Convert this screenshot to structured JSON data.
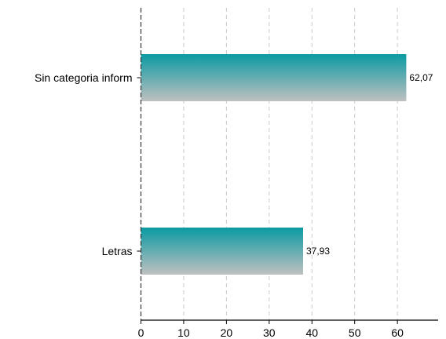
{
  "chart_data": {
    "type": "bar",
    "orientation": "horizontal",
    "categories": [
      "Sin categoria inform",
      "Letras"
    ],
    "values": [
      62.07,
      37.93
    ],
    "value_labels": [
      "62,07",
      "37,93"
    ],
    "title": "",
    "xlabel": "",
    "ylabel": "",
    "xlim": [
      0,
      70
    ],
    "xticks": [
      0,
      10,
      20,
      30,
      40,
      50,
      60
    ],
    "grid": "x-dashed",
    "legend": "none",
    "colors": {
      "bar_top": "#0a9aa2",
      "bar_bottom": "#c0c0c0",
      "grid": "#c8c8c8",
      "axis": "#000000"
    }
  }
}
